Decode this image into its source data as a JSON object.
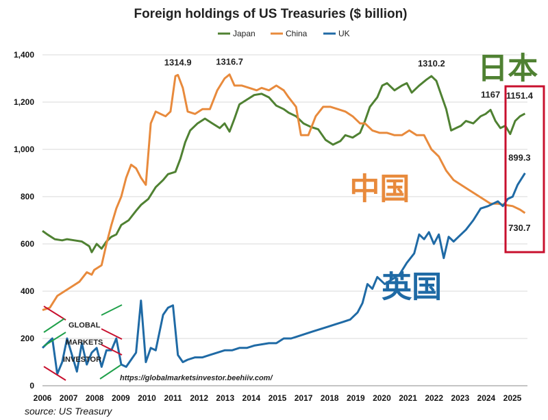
{
  "chart_data": {
    "type": "line",
    "title": "Foreign holdings of US Treasuries ($ billion)",
    "xlabel": "",
    "ylabel": "",
    "xlim": [
      2006,
      2025.7
    ],
    "ylim": [
      0,
      1400
    ],
    "x_ticks": [
      "2006",
      "2007",
      "2008",
      "2009",
      "2010",
      "2011",
      "2012",
      "2013",
      "2014",
      "2015",
      "2017",
      "2018",
      "2019",
      "2020",
      "2021",
      "2022",
      "2023",
      "2024",
      "2025"
    ],
    "y_ticks": [
      "0",
      "200",
      "400",
      "600",
      "800",
      "1,000",
      "1,200",
      "1,400"
    ],
    "legend": [
      "Japan",
      "China",
      "UK"
    ],
    "legend_position": "top-center",
    "grid": "horizontal",
    "series": [
      {
        "name": "Japan",
        "color": "#4f8132",
        "points": [
          [
            2006.0,
            655
          ],
          [
            2006.2,
            640
          ],
          [
            2006.5,
            620
          ],
          [
            2006.8,
            615
          ],
          [
            2007.0,
            620
          ],
          [
            2007.3,
            615
          ],
          [
            2007.6,
            610
          ],
          [
            2007.9,
            590
          ],
          [
            2008.0,
            565
          ],
          [
            2008.2,
            600
          ],
          [
            2008.4,
            580
          ],
          [
            2008.6,
            610
          ],
          [
            2008.8,
            630
          ],
          [
            2009.0,
            640
          ],
          [
            2009.2,
            680
          ],
          [
            2009.5,
            700
          ],
          [
            2009.8,
            740
          ],
          [
            2010.0,
            765
          ],
          [
            2010.3,
            790
          ],
          [
            2010.6,
            840
          ],
          [
            2010.9,
            870
          ],
          [
            2011.1,
            895
          ],
          [
            2011.4,
            905
          ],
          [
            2011.6,
            960
          ],
          [
            2011.8,
            1030
          ],
          [
            2012.0,
            1080
          ],
          [
            2012.3,
            1110
          ],
          [
            2012.6,
            1130
          ],
          [
            2012.9,
            1110
          ],
          [
            2013.2,
            1090
          ],
          [
            2013.4,
            1110
          ],
          [
            2013.6,
            1075
          ],
          [
            2013.8,
            1130
          ],
          [
            2014.0,
            1190
          ],
          [
            2014.3,
            1210
          ],
          [
            2014.6,
            1230
          ],
          [
            2014.9,
            1235
          ],
          [
            2015.2,
            1220
          ],
          [
            2015.5,
            1185
          ],
          [
            2015.8,
            1170
          ],
          [
            2016.0,
            1155
          ],
          [
            2016.3,
            1140
          ],
          [
            2016.6,
            1110
          ],
          [
            2016.9,
            1095
          ],
          [
            2017.2,
            1085
          ],
          [
            2017.5,
            1040
          ],
          [
            2017.8,
            1020
          ],
          [
            2018.1,
            1035
          ],
          [
            2018.3,
            1060
          ],
          [
            2018.6,
            1050
          ],
          [
            2018.9,
            1070
          ],
          [
            2019.1,
            1120
          ],
          [
            2019.3,
            1180
          ],
          [
            2019.6,
            1220
          ],
          [
            2019.8,
            1270
          ],
          [
            2020.0,
            1280
          ],
          [
            2020.3,
            1250
          ],
          [
            2020.6,
            1270
          ],
          [
            2020.8,
            1280
          ],
          [
            2021.0,
            1240
          ],
          [
            2021.3,
            1270
          ],
          [
            2021.6,
            1295
          ],
          [
            2021.8,
            1310
          ],
          [
            2022.0,
            1290
          ],
          [
            2022.2,
            1230
          ],
          [
            2022.4,
            1170
          ],
          [
            2022.6,
            1080
          ],
          [
            2022.8,
            1090
          ],
          [
            2023.0,
            1100
          ],
          [
            2023.2,
            1120
          ],
          [
            2023.5,
            1110
          ],
          [
            2023.8,
            1140
          ],
          [
            2024.0,
            1150
          ],
          [
            2024.2,
            1167
          ],
          [
            2024.4,
            1120
          ],
          [
            2024.6,
            1090
          ],
          [
            2024.8,
            1100
          ],
          [
            2025.0,
            1065
          ],
          [
            2025.2,
            1120
          ],
          [
            2025.4,
            1140
          ],
          [
            2025.6,
            1151.4
          ]
        ]
      },
      {
        "name": "China",
        "color": "#e88a3c",
        "points": [
          [
            2006.0,
            320
          ],
          [
            2006.3,
            330
          ],
          [
            2006.6,
            380
          ],
          [
            2006.9,
            400
          ],
          [
            2007.2,
            420
          ],
          [
            2007.5,
            440
          ],
          [
            2007.8,
            480
          ],
          [
            2008.0,
            470
          ],
          [
            2008.1,
            490
          ],
          [
            2008.4,
            510
          ],
          [
            2008.6,
            600
          ],
          [
            2008.8,
            680
          ],
          [
            2009.0,
            750
          ],
          [
            2009.2,
            800
          ],
          [
            2009.4,
            880
          ],
          [
            2009.6,
            935
          ],
          [
            2009.8,
            920
          ],
          [
            2010.0,
            880
          ],
          [
            2010.2,
            850
          ],
          [
            2010.4,
            1110
          ],
          [
            2010.6,
            1160
          ],
          [
            2010.8,
            1150
          ],
          [
            2011.0,
            1140
          ],
          [
            2011.2,
            1160
          ],
          [
            2011.4,
            1310
          ],
          [
            2011.5,
            1314.9
          ],
          [
            2011.7,
            1260
          ],
          [
            2011.9,
            1160
          ],
          [
            2012.2,
            1150
          ],
          [
            2012.5,
            1170
          ],
          [
            2012.8,
            1170
          ],
          [
            2013.1,
            1250
          ],
          [
            2013.4,
            1300
          ],
          [
            2013.6,
            1316.7
          ],
          [
            2013.8,
            1270
          ],
          [
            2014.1,
            1270
          ],
          [
            2014.4,
            1260
          ],
          [
            2014.7,
            1250
          ],
          [
            2014.9,
            1260
          ],
          [
            2015.2,
            1250
          ],
          [
            2015.5,
            1270
          ],
          [
            2015.8,
            1250
          ],
          [
            2016.0,
            1220
          ],
          [
            2016.3,
            1180
          ],
          [
            2016.5,
            1060
          ],
          [
            2016.8,
            1060
          ],
          [
            2017.1,
            1140
          ],
          [
            2017.4,
            1180
          ],
          [
            2017.7,
            1180
          ],
          [
            2018.0,
            1170
          ],
          [
            2018.3,
            1160
          ],
          [
            2018.6,
            1140
          ],
          [
            2018.9,
            1110
          ],
          [
            2019.1,
            1110
          ],
          [
            2019.4,
            1080
          ],
          [
            2019.7,
            1070
          ],
          [
            2020.0,
            1070
          ],
          [
            2020.3,
            1060
          ],
          [
            2020.6,
            1060
          ],
          [
            2020.9,
            1080
          ],
          [
            2021.2,
            1060
          ],
          [
            2021.5,
            1060
          ],
          [
            2021.8,
            1000
          ],
          [
            2022.1,
            970
          ],
          [
            2022.4,
            910
          ],
          [
            2022.7,
            870
          ],
          [
            2023.0,
            850
          ],
          [
            2023.3,
            830
          ],
          [
            2023.6,
            810
          ],
          [
            2023.9,
            790
          ],
          [
            2024.2,
            770
          ],
          [
            2024.5,
            770
          ],
          [
            2024.8,
            765
          ],
          [
            2025.1,
            760
          ],
          [
            2025.4,
            745
          ],
          [
            2025.6,
            730.7
          ]
        ]
      },
      {
        "name": "UK",
        "color": "#1f6aa5",
        "points": [
          [
            2006.0,
            160
          ],
          [
            2006.2,
            180
          ],
          [
            2006.4,
            200
          ],
          [
            2006.6,
            50
          ],
          [
            2006.8,
            100
          ],
          [
            2007.0,
            200
          ],
          [
            2007.2,
            130
          ],
          [
            2007.4,
            60
          ],
          [
            2007.6,
            180
          ],
          [
            2007.8,
            90
          ],
          [
            2008.0,
            140
          ],
          [
            2008.2,
            160
          ],
          [
            2008.4,
            80
          ],
          [
            2008.6,
            150
          ],
          [
            2008.8,
            150
          ],
          [
            2009.0,
            200
          ],
          [
            2009.2,
            90
          ],
          [
            2009.4,
            80
          ],
          [
            2009.6,
            110
          ],
          [
            2009.8,
            140
          ],
          [
            2010.0,
            360
          ],
          [
            2010.2,
            100
          ],
          [
            2010.4,
            160
          ],
          [
            2010.6,
            150
          ],
          [
            2010.9,
            300
          ],
          [
            2011.1,
            330
          ],
          [
            2011.3,
            340
          ],
          [
            2011.5,
            130
          ],
          [
            2011.7,
            100
          ],
          [
            2011.9,
            110
          ],
          [
            2012.2,
            120
          ],
          [
            2012.5,
            120
          ],
          [
            2012.8,
            130
          ],
          [
            2013.1,
            140
          ],
          [
            2013.4,
            150
          ],
          [
            2013.7,
            150
          ],
          [
            2014.0,
            160
          ],
          [
            2014.3,
            160
          ],
          [
            2014.6,
            170
          ],
          [
            2014.9,
            175
          ],
          [
            2015.2,
            180
          ],
          [
            2015.5,
            180
          ],
          [
            2015.8,
            200
          ],
          [
            2016.1,
            200
          ],
          [
            2016.4,
            210
          ],
          [
            2016.7,
            220
          ],
          [
            2017.0,
            230
          ],
          [
            2017.3,
            240
          ],
          [
            2017.6,
            250
          ],
          [
            2017.9,
            260
          ],
          [
            2018.2,
            270
          ],
          [
            2018.5,
            280
          ],
          [
            2018.8,
            310
          ],
          [
            2019.0,
            350
          ],
          [
            2019.2,
            430
          ],
          [
            2019.4,
            410
          ],
          [
            2019.6,
            460
          ],
          [
            2019.9,
            430
          ],
          [
            2020.2,
            450
          ],
          [
            2020.5,
            470
          ],
          [
            2020.8,
            520
          ],
          [
            2021.1,
            560
          ],
          [
            2021.3,
            640
          ],
          [
            2021.5,
            620
          ],
          [
            2021.7,
            650
          ],
          [
            2021.9,
            600
          ],
          [
            2022.1,
            640
          ],
          [
            2022.3,
            540
          ],
          [
            2022.5,
            630
          ],
          [
            2022.7,
            610
          ],
          [
            2022.9,
            630
          ],
          [
            2023.2,
            660
          ],
          [
            2023.5,
            700
          ],
          [
            2023.8,
            750
          ],
          [
            2024.1,
            760
          ],
          [
            2024.3,
            770
          ],
          [
            2024.5,
            780
          ],
          [
            2024.7,
            760
          ],
          [
            2024.9,
            790
          ],
          [
            2025.1,
            800
          ],
          [
            2025.3,
            850
          ],
          [
            2025.6,
            899.3
          ]
        ]
      }
    ],
    "annotations": [
      {
        "label": "1314.9",
        "x": 2011.5,
        "y": 1314.9
      },
      {
        "label": "1316.7",
        "x": 2013.6,
        "y": 1316.7
      },
      {
        "label": "1310.2",
        "x": 2021.8,
        "y": 1310.2
      },
      {
        "label": "1167",
        "x": 2024.2,
        "y": 1167
      },
      {
        "label": "1151.4",
        "x": 2025.6,
        "y": 1151.4
      },
      {
        "label": "899.3",
        "x": 2025.6,
        "y": 899.3
      },
      {
        "label": "730.7",
        "x": 2025.6,
        "y": 730.7
      }
    ],
    "series_labels": [
      {
        "label": "日本",
        "color": "#4f8132",
        "x": 2024.9,
        "y": 1300
      },
      {
        "label": "中国",
        "color": "#e88a3c",
        "x": 2019.7,
        "y": 790
      },
      {
        "label": "英国",
        "color": "#1f6aa5",
        "x": 2021.0,
        "y": 375
      }
    ],
    "source": "source: US Treasury",
    "url": "https://globalmarketsinvestor.beehiiv.com/",
    "logo_text": [
      "GLOBAL",
      "MARKETS",
      "INVESTOR"
    ],
    "highlight_box_color": "#c8102e"
  }
}
